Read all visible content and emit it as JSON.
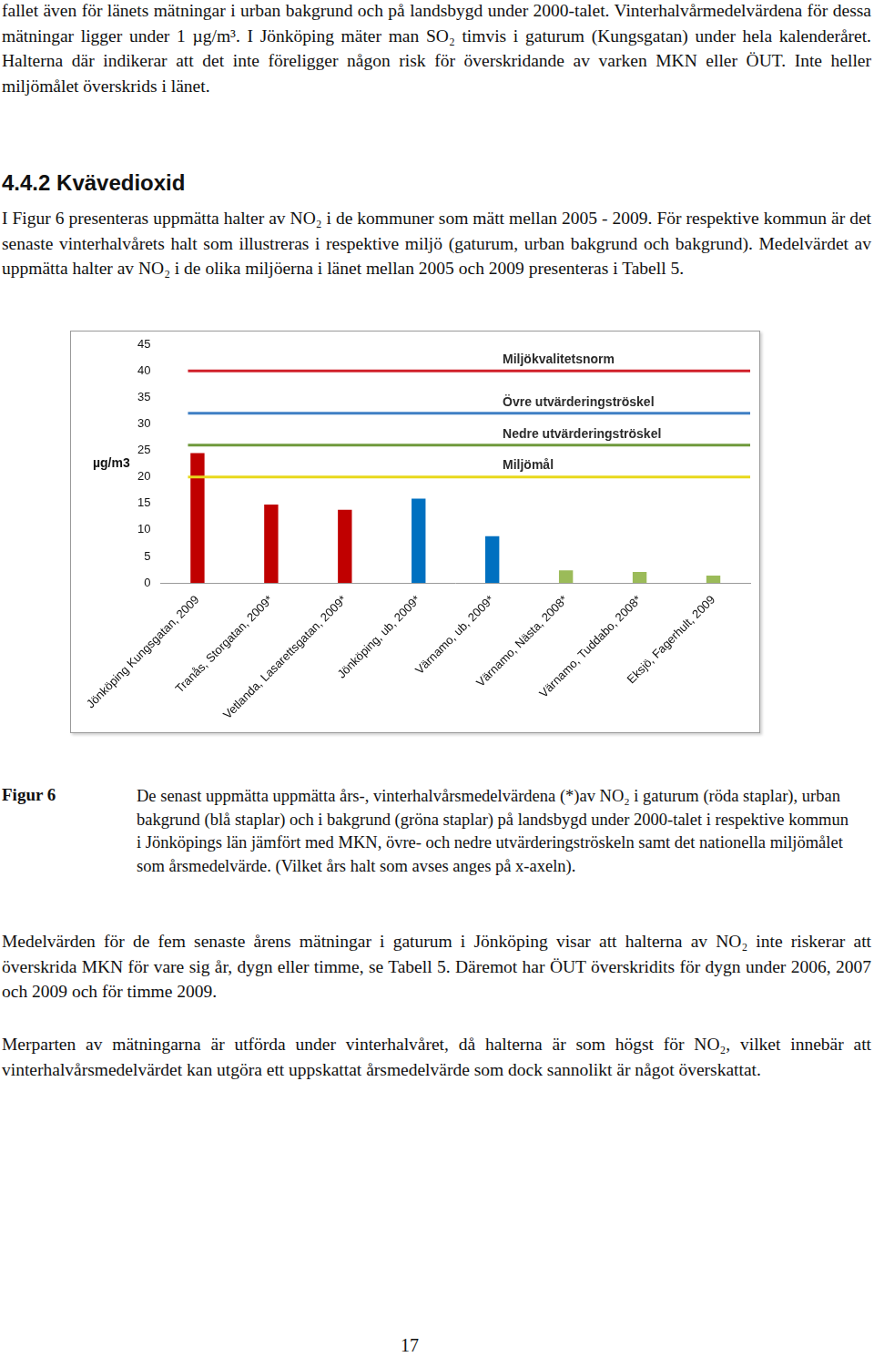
{
  "top_text": "fallet även för länets mätningar i urban bakgrund och på landsbygd under 2000-talet. Vinterhalvårmedelvärdena för dessa mätningar ligger under 1 µg/m³. I Jönköping mäter man SO₂ timvis i gaturum (Kungsgatan) under hela kalenderåret. Halterna där indikerar att det inte föreligger någon risk för överskridande av varken MKN eller ÖUT. Inte heller miljömålet överskrids i länet.",
  "heading": "4.4.2 Kvävedioxid",
  "intro": "I Figur 6 presenteras uppmätta halter av NO₂ i de kommuner som mätt mellan 2005 - 2009. För respektive kommun är det senaste vinterhalvårets halt som illustreras i respektive miljö (gaturum, urban bakgrund och bakgrund). Medelvärdet av uppmätta halter av NO₂ i de olika miljöerna i länet mellan 2005 och 2009 presenteras i Tabell 5.",
  "chart_data": {
    "type": "bar",
    "y_label": "µg/m3",
    "categories": [
      "Jönköping Kungsgatan, 2009",
      "Tranås, Storgatan, 2009*",
      "Vetlanda, Lasarettsgatan, 2009*",
      "Jönköping, ub, 2009*",
      "Värnamo, ub, 2009*",
      "Värnamo, Nästa, 2008*",
      "Värnamo, Tuddabo, 2008*",
      "Eksjö, Fagerhult, 2009"
    ],
    "values": [
      24.5,
      14.8,
      13.8,
      15.9,
      8.8,
      2.4,
      2.1,
      1.4
    ],
    "colors": [
      "#c00000",
      "#c00000",
      "#c00000",
      "#0070c0",
      "#0070c0",
      "#9bbb59",
      "#9bbb59",
      "#9bbb59"
    ],
    "reference_lines": [
      {
        "label": "Miljökvalitetsnorm",
        "value": 40,
        "color": "#d0202a"
      },
      {
        "label": "Övre utvärderingströskel",
        "value": 32,
        "color": "#3f7fc4"
      },
      {
        "label": "Nedre utvärderingströskel",
        "value": 26,
        "color": "#6f9a3c"
      },
      {
        "label": "Miljömål",
        "value": 20,
        "color": "#e8d81c"
      }
    ],
    "ylim": [
      0,
      45
    ],
    "yticks": [
      0,
      5,
      10,
      15,
      20,
      25,
      30,
      35,
      40,
      45
    ],
    "grid": false
  },
  "caption": {
    "label": "Figur 6",
    "text": "De senast uppmätta uppmätta års-, vinterhalvårsmedelvärdena (*)av NO₂ i gaturum (röda staplar), urban bakgrund (blå staplar) och i bakgrund (gröna staplar) på landsbygd under 2000-talet i respektive kommun i Jönköpings län jämfört med MKN, övre- och nedre utvärderingströskeln samt det nationella miljömålet som årsmedelvärde. (Vilket års halt som avses anges på x-axeln)."
  },
  "paragraphs": [
    "Medelvärden för de fem senaste årens mätningar i gaturum i Jönköping visar att halterna av NO₂ inte riskerar att överskrida MKN för vare sig år, dygn eller timme, se Tabell 5. Däremot har ÖUT överskridits för dygn under 2006, 2007 och 2009 och för timme 2009.",
    "Merparten av mätningarna är utförda under vinterhalvåret, då halterna är som högst för NO₂, vilket innebär att vinterhalvårsmedelvärdet kan utgöra ett uppskattat årsmedelvärde som dock sannolikt är något överskattat."
  ],
  "page_number": "17"
}
